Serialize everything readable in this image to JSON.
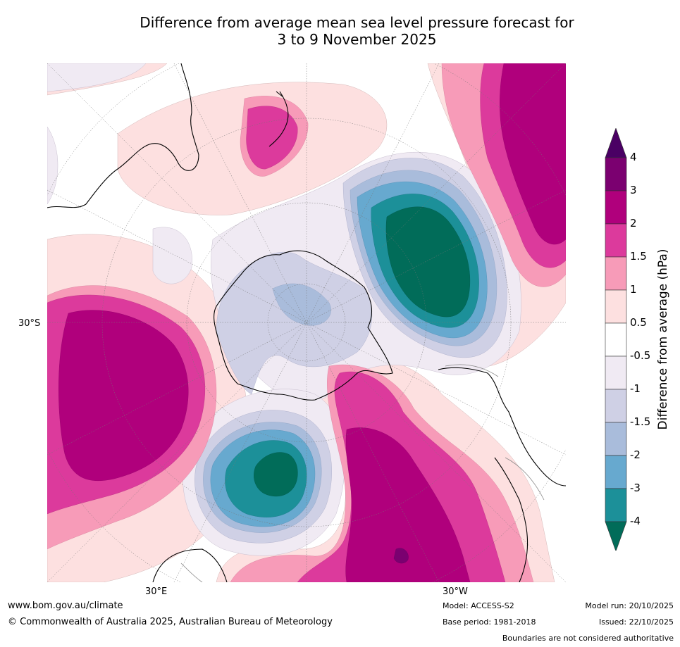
{
  "title_line1": "Difference from average mean sea level pressure forecast for",
  "title_line2": "3 to 9 November 2025",
  "map_labels": {
    "lat_30s": "30°S",
    "lon_30e": "30°E",
    "lon_30w": "30°W"
  },
  "colorbar": {
    "title": "Difference from average (hPa)",
    "ticks": [
      "4",
      "3",
      "2",
      "1.5",
      "1",
      "0.5",
      "-0.5",
      "-1",
      "-1.5",
      "-2",
      "-3",
      "-4"
    ],
    "bins": [
      {
        "range": "> 4",
        "color": "#4a0064"
      },
      {
        "range": "3 to 4",
        "color": "#7b0070"
      },
      {
        "range": "2 to 3",
        "color": "#b0007c"
      },
      {
        "range": "1.5 to 2",
        "color": "#dc3a9c"
      },
      {
        "range": "1 to 1.5",
        "color": "#f79bb8"
      },
      {
        "range": "0.5 to 1",
        "color": "#fde0e0"
      },
      {
        "range": "-0.5 to 0.5",
        "color": "#ffffff"
      },
      {
        "range": "-1 to -0.5",
        "color": "#f0eaf3"
      },
      {
        "range": "-1.5 to -1",
        "color": "#cfd0e5"
      },
      {
        "range": "-2 to -1.5",
        "color": "#a9bcdb"
      },
      {
        "range": "-3 to -2",
        "color": "#67a9cf"
      },
      {
        "range": "-4 to -3",
        "color": "#1c9099"
      },
      {
        "range": "< -4",
        "color": "#016c59"
      }
    ]
  },
  "footer": {
    "website": "www.bom.gov.au/climate",
    "copyright": "© Commonwealth of Australia 2025, Australian Bureau of Meteorology",
    "model": "Model: ACCESS-S2",
    "base_period": "Base period: 1981-2018",
    "model_run": "Model run: 20/10/2025",
    "issued": "Issued: 22/10/2025",
    "disclaimer": "Boundaries are not considered authoritative"
  }
}
